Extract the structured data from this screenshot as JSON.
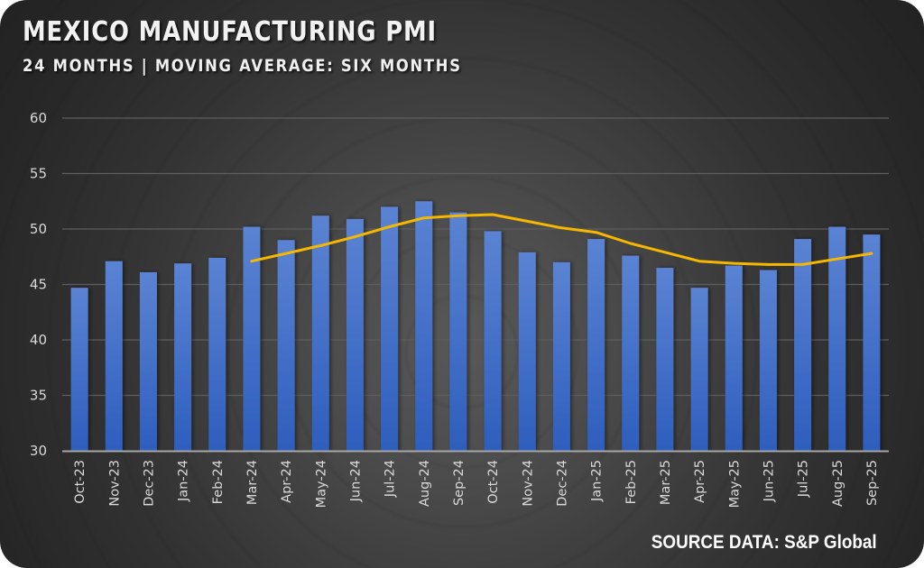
{
  "header": {
    "title": "MEXICO MANUFACTURING PMI",
    "subtitle": "24 MONTHS | MOVING AVERAGE: SIX MONTHS"
  },
  "footer": {
    "source": "SOURCE DATA: S&P Global"
  },
  "colors": {
    "bar_top": "#5b83d3",
    "bar_bottom": "#2e5ebd",
    "line": "#f5b700",
    "gridline": "#5e5e5e",
    "axis": "#a6a6a6",
    "tick_text": "#d9d9d9"
  },
  "chart_data": {
    "type": "bar",
    "title": "MEXICO MANUFACTURING PMI",
    "subtitle": "24 MONTHS | MOVING AVERAGE: SIX MONTHS",
    "xlabel": "",
    "ylabel": "",
    "ylim": [
      30,
      60
    ],
    "yticks": [
      30,
      35,
      40,
      45,
      50,
      55,
      60
    ],
    "ytick_labels": [
      "30",
      "35",
      "40",
      "45",
      "50",
      "55",
      "60"
    ],
    "grid": true,
    "legend": "none",
    "categories": [
      "Oct-23",
      "Nov-23",
      "Dec-23",
      "Jan-24",
      "Feb-24",
      "Mar-24",
      "Apr-24",
      "May-24",
      "Jun-24",
      "Jul-24",
      "Aug-24",
      "Sep-24",
      "Oct-24",
      "Nov-24",
      "Dec-24",
      "Jan-25",
      "Feb-25",
      "Mar-25",
      "Apr-25",
      "May-25",
      "Jun-25",
      "Jul-25",
      "Aug-25",
      "Sep-25"
    ],
    "series": [
      {
        "name": "Manufacturing PMI",
        "type": "bar",
        "values": [
          44.7,
          47.1,
          46.1,
          46.9,
          47.4,
          50.2,
          49.0,
          51.2,
          50.9,
          52.0,
          52.5,
          51.5,
          49.8,
          47.9,
          47.0,
          49.1,
          47.6,
          46.5,
          44.7,
          46.7,
          46.3,
          49.1,
          50.2,
          49.5
        ]
      },
      {
        "name": "6-month moving average",
        "type": "line",
        "values": [
          null,
          null,
          null,
          null,
          null,
          47.1,
          47.8,
          48.5,
          49.3,
          50.2,
          51.0,
          51.2,
          51.3,
          50.7,
          50.1,
          49.7,
          48.7,
          47.9,
          47.1,
          46.9,
          46.8,
          46.8,
          47.3,
          47.8
        ]
      }
    ],
    "source": "SOURCE DATA: S&P Global"
  }
}
